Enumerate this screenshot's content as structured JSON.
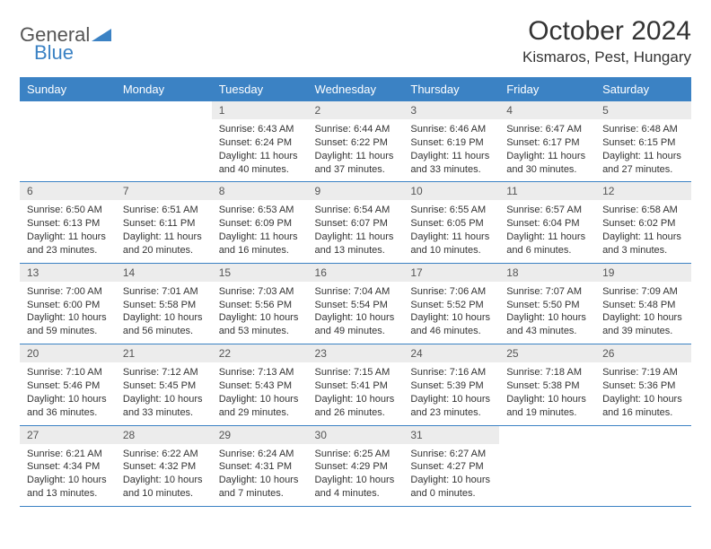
{
  "logo": {
    "text1": "General",
    "text2": "Blue"
  },
  "title": "October 2024",
  "location": "Kismaros, Pest, Hungary",
  "colors": {
    "header_bg": "#3b82c4",
    "header_text": "#ffffff",
    "daynum_bg": "#ececec",
    "border": "#3b82c4",
    "page_bg": "#ffffff",
    "text": "#333333"
  },
  "font": {
    "family": "Arial",
    "title_size": 30,
    "location_size": 17,
    "dow_size": 13,
    "daynum_size": 12,
    "body_size": 11
  },
  "days_of_week": [
    "Sunday",
    "Monday",
    "Tuesday",
    "Wednesday",
    "Thursday",
    "Friday",
    "Saturday"
  ],
  "weeks": [
    [
      null,
      null,
      {
        "n": "1",
        "sr": "Sunrise: 6:43 AM",
        "ss": "Sunset: 6:24 PM",
        "dl": "Daylight: 11 hours and 40 minutes."
      },
      {
        "n": "2",
        "sr": "Sunrise: 6:44 AM",
        "ss": "Sunset: 6:22 PM",
        "dl": "Daylight: 11 hours and 37 minutes."
      },
      {
        "n": "3",
        "sr": "Sunrise: 6:46 AM",
        "ss": "Sunset: 6:19 PM",
        "dl": "Daylight: 11 hours and 33 minutes."
      },
      {
        "n": "4",
        "sr": "Sunrise: 6:47 AM",
        "ss": "Sunset: 6:17 PM",
        "dl": "Daylight: 11 hours and 30 minutes."
      },
      {
        "n": "5",
        "sr": "Sunrise: 6:48 AM",
        "ss": "Sunset: 6:15 PM",
        "dl": "Daylight: 11 hours and 27 minutes."
      }
    ],
    [
      {
        "n": "6",
        "sr": "Sunrise: 6:50 AM",
        "ss": "Sunset: 6:13 PM",
        "dl": "Daylight: 11 hours and 23 minutes."
      },
      {
        "n": "7",
        "sr": "Sunrise: 6:51 AM",
        "ss": "Sunset: 6:11 PM",
        "dl": "Daylight: 11 hours and 20 minutes."
      },
      {
        "n": "8",
        "sr": "Sunrise: 6:53 AM",
        "ss": "Sunset: 6:09 PM",
        "dl": "Daylight: 11 hours and 16 minutes."
      },
      {
        "n": "9",
        "sr": "Sunrise: 6:54 AM",
        "ss": "Sunset: 6:07 PM",
        "dl": "Daylight: 11 hours and 13 minutes."
      },
      {
        "n": "10",
        "sr": "Sunrise: 6:55 AM",
        "ss": "Sunset: 6:05 PM",
        "dl": "Daylight: 11 hours and 10 minutes."
      },
      {
        "n": "11",
        "sr": "Sunrise: 6:57 AM",
        "ss": "Sunset: 6:04 PM",
        "dl": "Daylight: 11 hours and 6 minutes."
      },
      {
        "n": "12",
        "sr": "Sunrise: 6:58 AM",
        "ss": "Sunset: 6:02 PM",
        "dl": "Daylight: 11 hours and 3 minutes."
      }
    ],
    [
      {
        "n": "13",
        "sr": "Sunrise: 7:00 AM",
        "ss": "Sunset: 6:00 PM",
        "dl": "Daylight: 10 hours and 59 minutes."
      },
      {
        "n": "14",
        "sr": "Sunrise: 7:01 AM",
        "ss": "Sunset: 5:58 PM",
        "dl": "Daylight: 10 hours and 56 minutes."
      },
      {
        "n": "15",
        "sr": "Sunrise: 7:03 AM",
        "ss": "Sunset: 5:56 PM",
        "dl": "Daylight: 10 hours and 53 minutes."
      },
      {
        "n": "16",
        "sr": "Sunrise: 7:04 AM",
        "ss": "Sunset: 5:54 PM",
        "dl": "Daylight: 10 hours and 49 minutes."
      },
      {
        "n": "17",
        "sr": "Sunrise: 7:06 AM",
        "ss": "Sunset: 5:52 PM",
        "dl": "Daylight: 10 hours and 46 minutes."
      },
      {
        "n": "18",
        "sr": "Sunrise: 7:07 AM",
        "ss": "Sunset: 5:50 PM",
        "dl": "Daylight: 10 hours and 43 minutes."
      },
      {
        "n": "19",
        "sr": "Sunrise: 7:09 AM",
        "ss": "Sunset: 5:48 PM",
        "dl": "Daylight: 10 hours and 39 minutes."
      }
    ],
    [
      {
        "n": "20",
        "sr": "Sunrise: 7:10 AM",
        "ss": "Sunset: 5:46 PM",
        "dl": "Daylight: 10 hours and 36 minutes."
      },
      {
        "n": "21",
        "sr": "Sunrise: 7:12 AM",
        "ss": "Sunset: 5:45 PM",
        "dl": "Daylight: 10 hours and 33 minutes."
      },
      {
        "n": "22",
        "sr": "Sunrise: 7:13 AM",
        "ss": "Sunset: 5:43 PM",
        "dl": "Daylight: 10 hours and 29 minutes."
      },
      {
        "n": "23",
        "sr": "Sunrise: 7:15 AM",
        "ss": "Sunset: 5:41 PM",
        "dl": "Daylight: 10 hours and 26 minutes."
      },
      {
        "n": "24",
        "sr": "Sunrise: 7:16 AM",
        "ss": "Sunset: 5:39 PM",
        "dl": "Daylight: 10 hours and 23 minutes."
      },
      {
        "n": "25",
        "sr": "Sunrise: 7:18 AM",
        "ss": "Sunset: 5:38 PM",
        "dl": "Daylight: 10 hours and 19 minutes."
      },
      {
        "n": "26",
        "sr": "Sunrise: 7:19 AM",
        "ss": "Sunset: 5:36 PM",
        "dl": "Daylight: 10 hours and 16 minutes."
      }
    ],
    [
      {
        "n": "27",
        "sr": "Sunrise: 6:21 AM",
        "ss": "Sunset: 4:34 PM",
        "dl": "Daylight: 10 hours and 13 minutes."
      },
      {
        "n": "28",
        "sr": "Sunrise: 6:22 AM",
        "ss": "Sunset: 4:32 PM",
        "dl": "Daylight: 10 hours and 10 minutes."
      },
      {
        "n": "29",
        "sr": "Sunrise: 6:24 AM",
        "ss": "Sunset: 4:31 PM",
        "dl": "Daylight: 10 hours and 7 minutes."
      },
      {
        "n": "30",
        "sr": "Sunrise: 6:25 AM",
        "ss": "Sunset: 4:29 PM",
        "dl": "Daylight: 10 hours and 4 minutes."
      },
      {
        "n": "31",
        "sr": "Sunrise: 6:27 AM",
        "ss": "Sunset: 4:27 PM",
        "dl": "Daylight: 10 hours and 0 minutes."
      },
      null,
      null
    ]
  ]
}
